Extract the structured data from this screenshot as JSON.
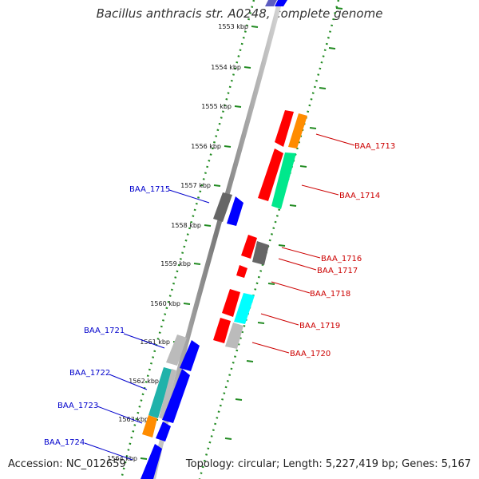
{
  "title": "Bacillus anthracis str. A0248, complete genome",
  "footer": {
    "accession": "Accession: NC_012659",
    "topology": "Topology: circular; Length: 5,227,419 bp; Genes: 5,167"
  },
  "colors": {
    "forward_genes": "#0000ff",
    "reverse_genes": "#ff0000",
    "tick_ruler": "#228b22",
    "forward_label": "#0000cc",
    "reverse_label": "#cc0000",
    "backbone": "#888888",
    "pseudo_gray": "#666666",
    "light_gray": "#bbbbbb",
    "orange": "#ff8c00",
    "mint": "#00e88c",
    "cyan": "#00ffff",
    "teal": "#20b2aa"
  },
  "ticks": [
    {
      "label": "1553 kbp"
    },
    {
      "label": "1554 kbp"
    },
    {
      "label": "1555 kbp"
    },
    {
      "label": "1556 kbp"
    },
    {
      "label": "1557 kbp"
    },
    {
      "label": "1558 kbp"
    },
    {
      "label": "1559 kbp"
    },
    {
      "label": "1560 kbp"
    },
    {
      "label": "1561 kbp"
    },
    {
      "label": "1562 kbp"
    },
    {
      "label": "1563 kbp"
    },
    {
      "label": "1564 kbp"
    }
  ],
  "gene_labels": {
    "forward": [
      "BAA_1715",
      "BAA_1721",
      "BAA_1722",
      "BAA_1723",
      "BAA_1724"
    ],
    "reverse": [
      "BAA_1713",
      "BAA_1714",
      "BAA_1716",
      "BAA_1717",
      "BAA_1718",
      "BAA_1719",
      "BAA_1720"
    ]
  }
}
